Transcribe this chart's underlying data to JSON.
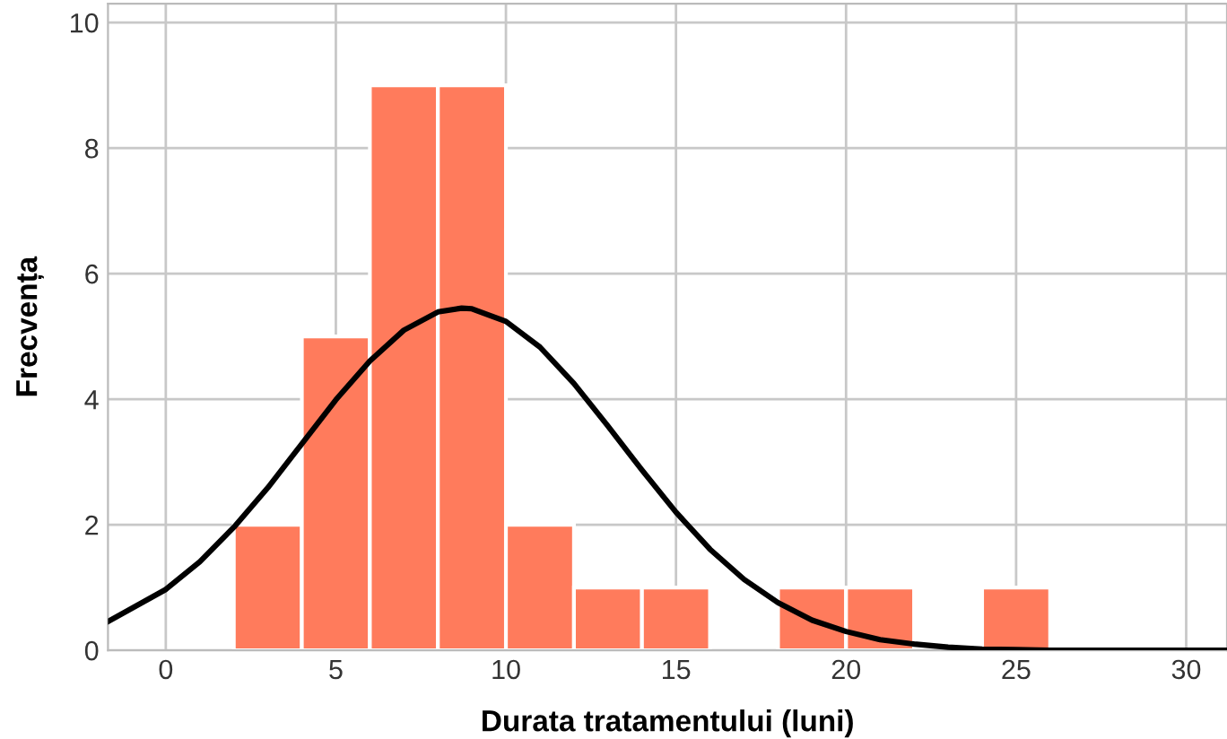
{
  "chart_data": {
    "type": "histogram",
    "xlabel": "Durata tratamentului (luni)",
    "ylabel": "Frecvența",
    "bins": [
      2,
      4,
      6,
      8,
      10,
      12,
      14,
      16,
      18,
      20,
      22,
      24,
      26
    ],
    "values": [
      2,
      5,
      9,
      9,
      2,
      1,
      1,
      0,
      1,
      1,
      0,
      1
    ],
    "color": "#ff7b5c",
    "series": [
      {
        "type": "line",
        "color": "#000000",
        "x": [
          -1.7,
          0,
          1,
          2,
          3,
          4,
          5,
          6,
          7,
          8,
          8.7,
          9,
          10,
          11,
          12,
          13,
          14,
          15,
          16,
          17,
          18,
          19,
          20,
          21,
          22,
          23,
          24,
          25,
          26,
          28,
          31.2
        ],
        "values": [
          0.46,
          0.97,
          1.41,
          1.96,
          2.59,
          3.29,
          3.99,
          4.61,
          5.1,
          5.39,
          5.45,
          5.44,
          5.24,
          4.83,
          4.25,
          3.57,
          2.87,
          2.2,
          1.61,
          1.13,
          0.76,
          0.48,
          0.3,
          0.17,
          0.1,
          0.05,
          0.02,
          0.01,
          0,
          0,
          0
        ]
      }
    ],
    "xlim": [
      -1.7,
      31.2
    ],
    "ylim": [
      0,
      10.3
    ],
    "xticks": [
      0,
      5,
      10,
      15,
      20,
      25,
      30
    ],
    "yticks": [
      0,
      2,
      4,
      6,
      8,
      10
    ],
    "grid": true
  }
}
